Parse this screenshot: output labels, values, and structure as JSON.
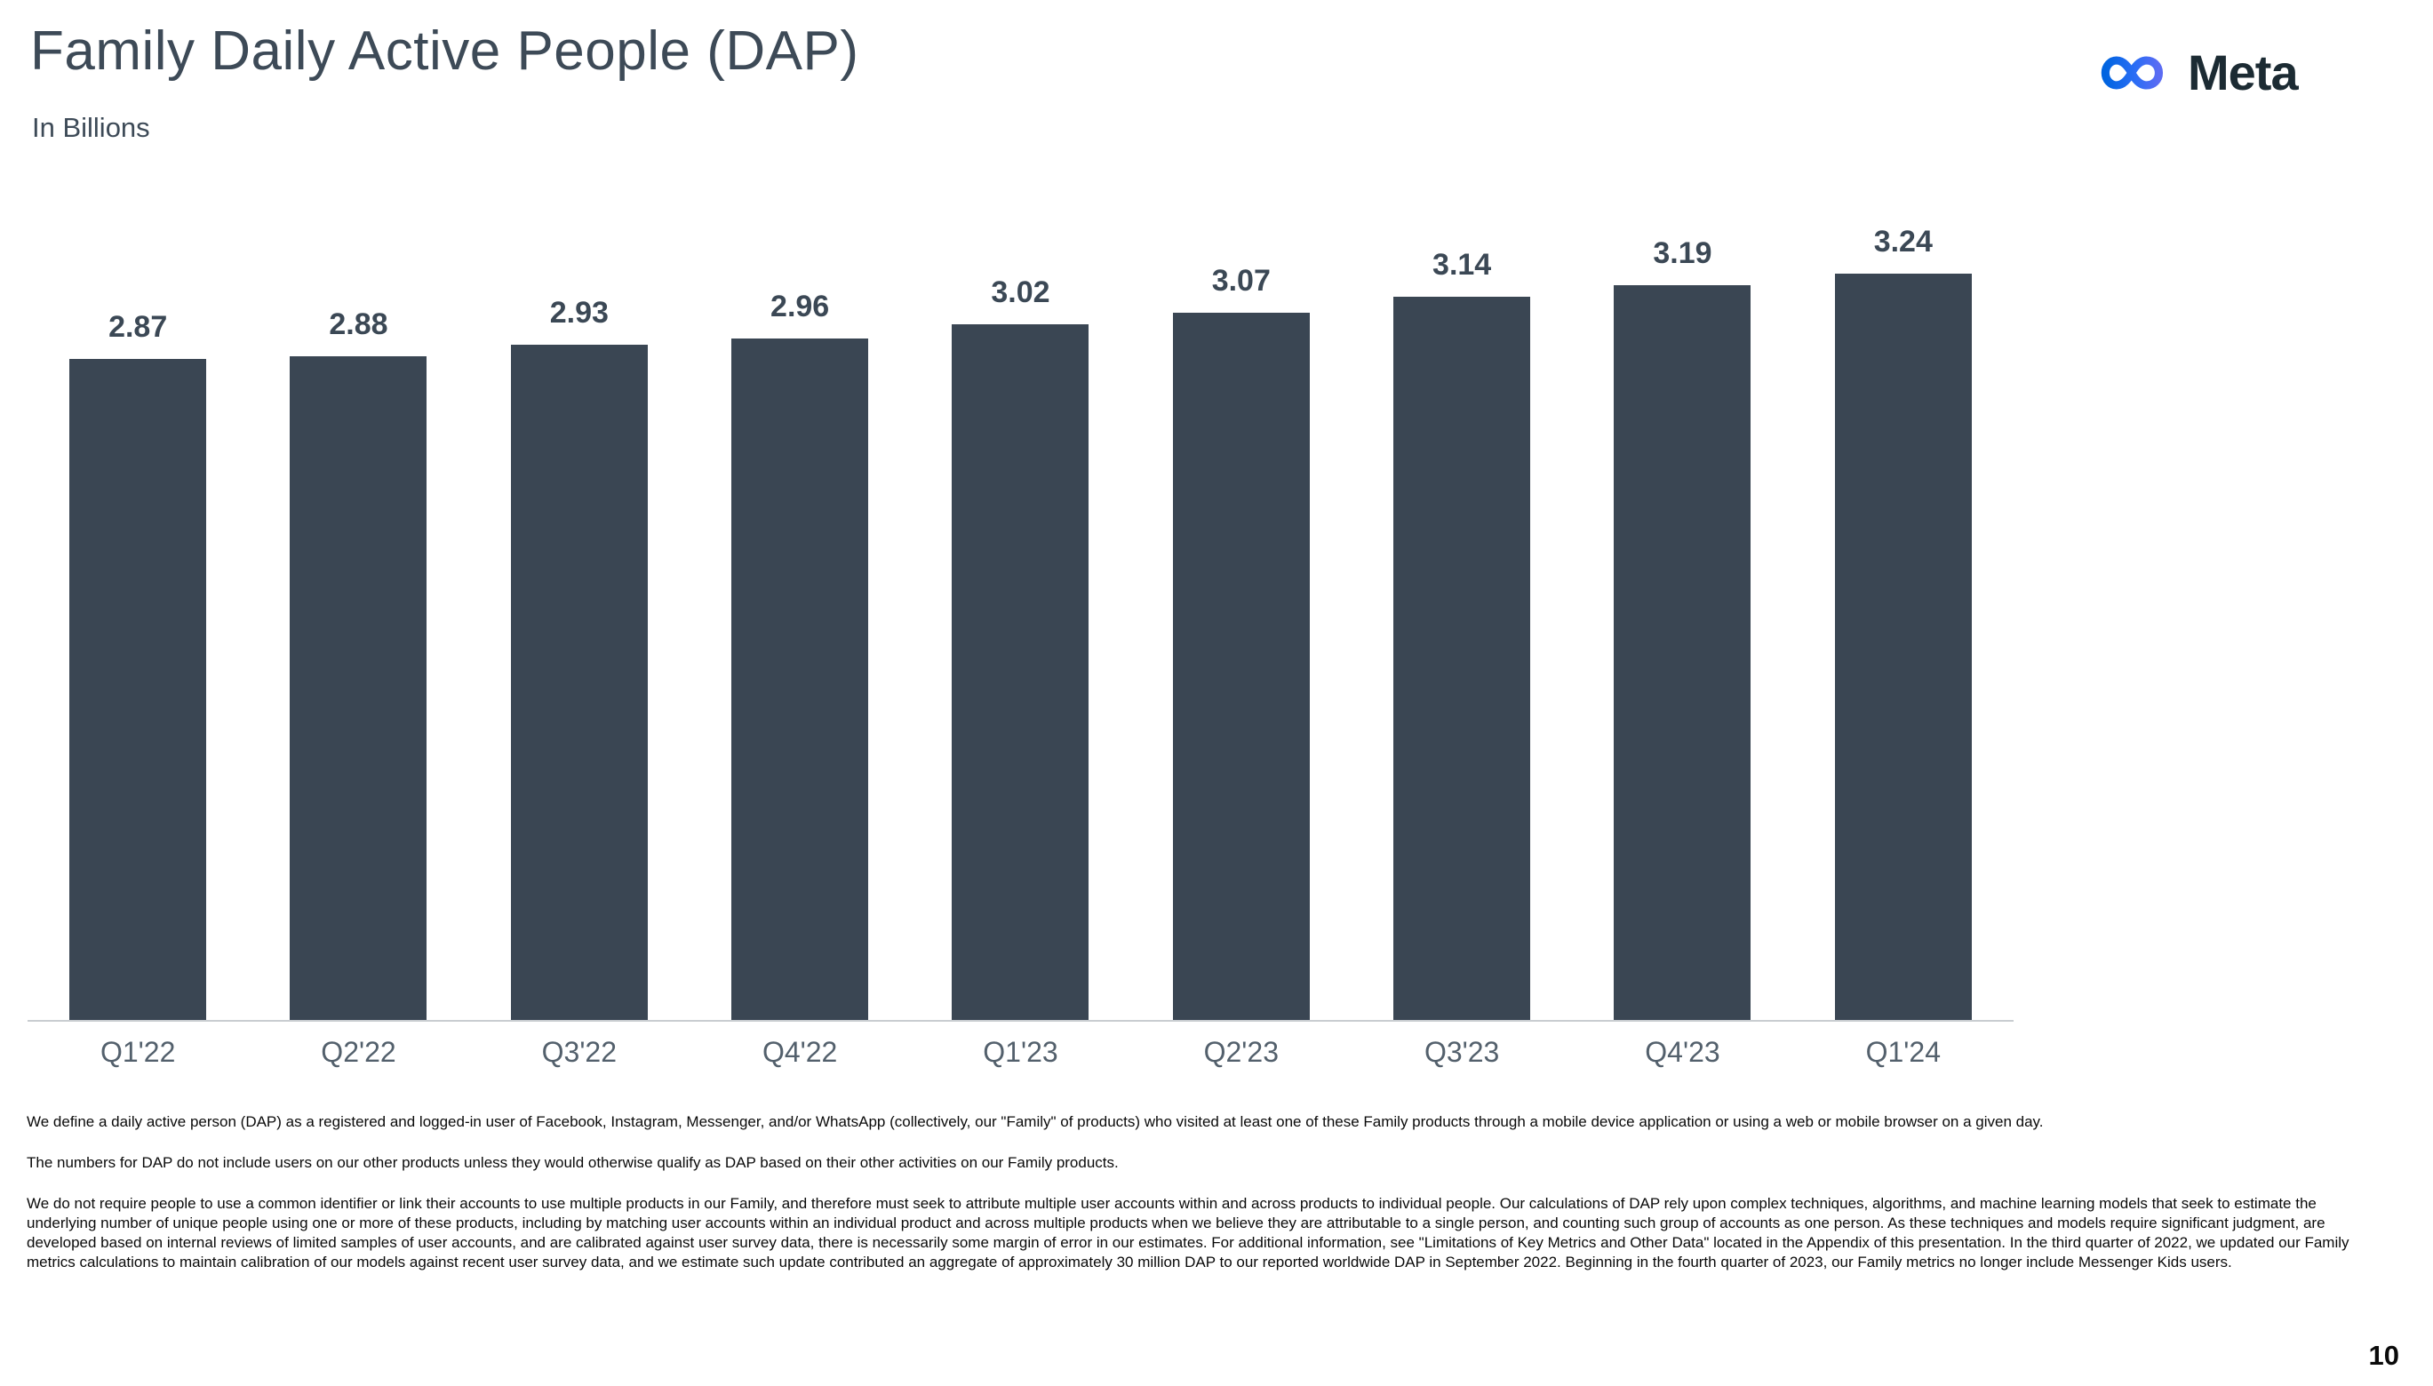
{
  "slide": {
    "title": "Family Daily Active People (DAP)",
    "subtitle": "In Billions",
    "page_number": "10"
  },
  "logo": {
    "brand": "Meta",
    "icon": "meta-infinity-icon",
    "gradient_start": "#0064e0",
    "gradient_end": "#0082fb",
    "wordmark_color": "#1c2b33"
  },
  "chart_data": {
    "type": "bar",
    "title": "Family Daily Active People (DAP)",
    "unit_label": "In Billions",
    "categories": [
      "Q1'22",
      "Q2'22",
      "Q3'22",
      "Q4'22",
      "Q1'23",
      "Q2'23",
      "Q3'23",
      "Q4'23",
      "Q1'24"
    ],
    "values": [
      2.87,
      2.88,
      2.93,
      2.96,
      3.02,
      3.07,
      3.14,
      3.19,
      3.24
    ],
    "ylim": [
      0,
      3.85
    ],
    "grid": false,
    "legend": "none",
    "data_labels": "above-bars",
    "bar_color": "#3a4653",
    "value_label_color": "#3b4855",
    "tick_label_color": "#53606c",
    "axis_line_color": "#c9cdd1"
  },
  "footnotes": {
    "paragraphs": [
      "We define a daily active person (DAP) as a registered and logged-in user of Facebook, Instagram, Messenger, and/or WhatsApp (collectively, our \"Family\" of products) who visited at least one of these Family products through a mobile device application or using a web or mobile browser on a given day.",
      "The numbers for DAP do not include users on our other products unless they would otherwise qualify as DAP based on their other activities on our Family products.",
      "We do not require people to use a common identifier or link their accounts to use multiple products in our Family, and therefore must seek to attribute multiple user accounts within and across products to individual people. Our calculations of DAP rely upon complex techniques, algorithms, and machine learning models that seek to estimate the underlying number of unique people using one or more of these products, including by matching user accounts within an individual product and across multiple products when we believe they are attributable to a single person, and counting such group of accounts as one person. As these techniques and models require significant judgment, are developed based on internal reviews of limited samples of user accounts, and are calibrated against user survey data, there is necessarily some margin of error in our estimates. For additional information, see \"Limitations of Key Metrics and Other Data\" located in the Appendix of this presentation. In the third quarter of 2022, we updated our Family metrics calculations to maintain calibration of our models against recent user survey data, and we estimate such update contributed an aggregate of approximately 30 million DAP to our reported worldwide DAP in September 2022. Beginning in the fourth quarter of 2023, our Family metrics no longer include Messenger Kids users."
    ]
  }
}
